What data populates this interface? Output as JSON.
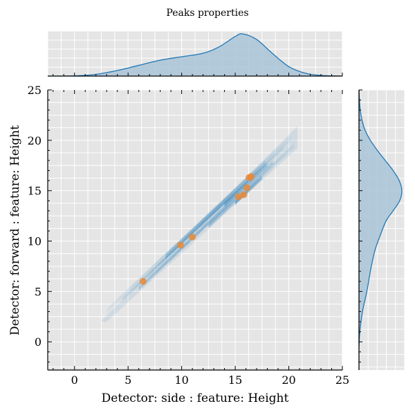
{
  "chart_data": {
    "type": "scatter",
    "title": "Peaks properties",
    "xlabel": "Detector: side : feature: Height",
    "ylabel": "Detector: forward : feature: Height",
    "xlim": [
      -2.5,
      25
    ],
    "ylim": [
      -2.8,
      25
    ],
    "xticks": [
      0,
      5,
      10,
      15,
      20,
      25
    ],
    "yticks": [
      0,
      5,
      10,
      15,
      20,
      25
    ],
    "grid": true,
    "background": "#e5e5e5",
    "colors": {
      "points": "#e8893a",
      "density": "#1f77b4",
      "kde_fill": "#a9c4d8",
      "kde_line": "#1f77b4"
    },
    "points": [
      {
        "x": 6.4,
        "y": 6.0
      },
      {
        "x": 9.9,
        "y": 9.6
      },
      {
        "x": 11.0,
        "y": 10.4
      },
      {
        "x": 15.3,
        "y": 14.4
      },
      {
        "x": 15.8,
        "y": 14.6
      },
      {
        "x": 16.1,
        "y": 15.3
      },
      {
        "x": 16.3,
        "y": 16.3
      },
      {
        "x": 16.5,
        "y": 16.4
      }
    ],
    "density_band": {
      "x_range": [
        2.5,
        20.8
      ],
      "lower_offset_start": -0.1,
      "upper_offset_end": 0.5
    },
    "marginal_x": {
      "x": [
        -2.5,
        0,
        2,
        4,
        6,
        8,
        10,
        12,
        13.5,
        15,
        15.7,
        17,
        18.5,
        20,
        21.5,
        23,
        25
      ],
      "density": [
        0.0,
        0.005,
        0.04,
        0.13,
        0.25,
        0.37,
        0.45,
        0.53,
        0.68,
        0.92,
        0.98,
        0.85,
        0.52,
        0.22,
        0.07,
        0.015,
        0.0
      ]
    },
    "marginal_y": {
      "y": [
        -0.5,
        1,
        3,
        5,
        7,
        9,
        10.5,
        12,
        13,
        14,
        15,
        16,
        17,
        18,
        19,
        20,
        21,
        22,
        23,
        24,
        25
      ],
      "density": [
        0.0,
        0.02,
        0.08,
        0.18,
        0.26,
        0.36,
        0.48,
        0.62,
        0.78,
        0.93,
        0.98,
        0.92,
        0.78,
        0.6,
        0.42,
        0.26,
        0.14,
        0.07,
        0.03,
        0.01,
        0.0
      ]
    }
  }
}
